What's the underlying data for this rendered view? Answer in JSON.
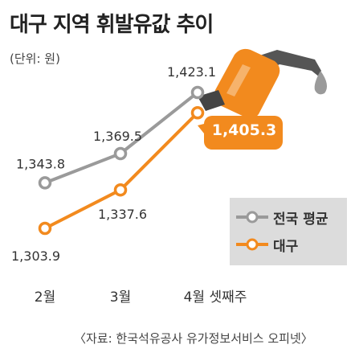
{
  "title": "대구 지역 휘발유값 추이",
  "unit": "(단위: 원)",
  "source": "〈자료: 한국석유공사 유가정보서비스 오피넷〉",
  "colors": {
    "national": "#9a9a9a",
    "daegu": "#f28a1e",
    "callout_bg": "#f28a1e",
    "legend_bg": "#dcdcdc"
  },
  "icons": {
    "decoration": "fuel-nozzle-icon"
  },
  "chart_data": {
    "type": "line",
    "categories": [
      "2월",
      "3월",
      "4월 셋째주"
    ],
    "series": [
      {
        "name": "전국 평균",
        "values": [
          1343.8,
          1369.5,
          1423.1
        ],
        "labels": [
          "1,343.8",
          "1,369.5",
          "1,423.1"
        ]
      },
      {
        "name": "대구",
        "values": [
          1303.9,
          1337.6,
          1405.3
        ],
        "labels": [
          "1,303.9",
          "1,337.6",
          "1,405.3"
        ]
      }
    ],
    "highlight_label": "1,405.3",
    "legend_position": "right",
    "grid": false
  }
}
